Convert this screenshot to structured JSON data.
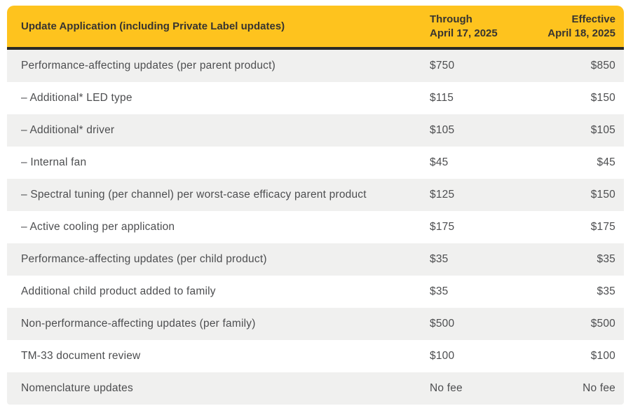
{
  "table": {
    "header": {
      "title": "Update Application (including Private Label updates)",
      "through": "Through\nApril 17, 2025",
      "effective": "Effective\nApril 18, 2025"
    },
    "rows": [
      {
        "label": "Performance-affecting updates (per parent product)",
        "through": "$750",
        "effective": "$850"
      },
      {
        "label": "– Additional* LED type",
        "through": "$115",
        "effective": "$150"
      },
      {
        "label": "– Additional* driver",
        "through": "$105",
        "effective": "$105"
      },
      {
        "label": "– Internal fan",
        "through": "$45",
        "effective": "$45"
      },
      {
        "label": "– Spectral tuning (per channel) per worst-case efficacy parent product",
        "through": "$125",
        "effective": "$150"
      },
      {
        "label": "– Active cooling per application",
        "through": "$175",
        "effective": "$175"
      },
      {
        "label": "Performance-affecting updates (per child product)",
        "through": "$35",
        "effective": "$35"
      },
      {
        "label": "Additional child product added to family",
        "through": "$35",
        "effective": "$35"
      },
      {
        "label": "Non-performance-affecting updates (per family)",
        "through": "$500",
        "effective": "$500"
      },
      {
        "label": "TM-33 document review",
        "through": "$100",
        "effective": "$100"
      },
      {
        "label": "Nomenclature updates",
        "through": "No fee",
        "effective": "No fee"
      }
    ],
    "colors": {
      "header_bg": "#FEC31E",
      "header_text": "#373430",
      "divider": "#2B2A25",
      "row_alt_bg": "#F0F0EF",
      "row_bg": "#FFFFFF",
      "body_text": "#4D4E50"
    }
  }
}
